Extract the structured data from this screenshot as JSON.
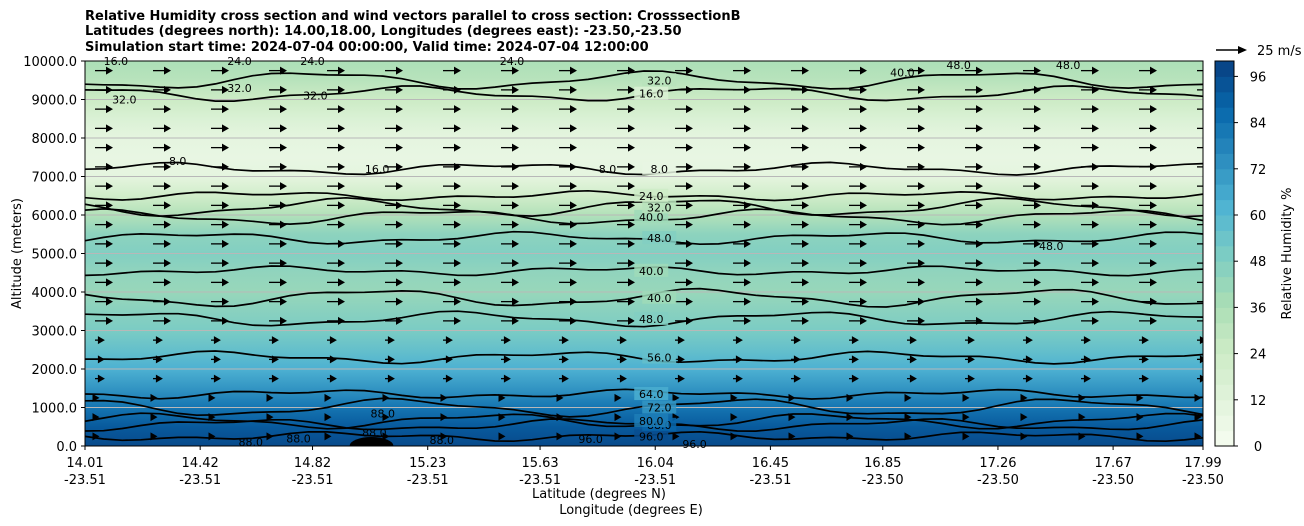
{
  "chart_data": {
    "type": "contour",
    "title": [
      "Relative Humidity cross section and wind vectors parallel to cross section: CrosssectionB",
      "Latitudes (degrees north): 14.00,18.00, Longitudes (degrees east): -23.50,-23.50",
      "Simulation start time: 2024-07-04 00:00:00, Valid time: 2024-07-04 12:00:00"
    ],
    "ylabel": "Altitude (meters)",
    "xlabel": "Latitude (degrees N)",
    "xlabel2": "Longitude (degrees E)",
    "ylim": [
      0,
      10000
    ],
    "y_ticks": [
      "0.0",
      "1000.0",
      "2000.0",
      "3000.0",
      "4000.0",
      "5000.0",
      "6000.0",
      "7000.0",
      "8000.0",
      "9000.0",
      "10000.0"
    ],
    "x_ticks": [
      {
        "lat": "14.01",
        "lon": "-23.51"
      },
      {
        "lat": "14.42",
        "lon": "-23.51"
      },
      {
        "lat": "14.82",
        "lon": "-23.51"
      },
      {
        "lat": "15.23",
        "lon": "-23.51"
      },
      {
        "lat": "15.63",
        "lon": "-23.51"
      },
      {
        "lat": "16.04",
        "lon": "-23.51"
      },
      {
        "lat": "16.45",
        "lon": "-23.51"
      },
      {
        "lat": "16.85",
        "lon": "-23.50"
      },
      {
        "lat": "17.26",
        "lon": "-23.50"
      },
      {
        "lat": "17.67",
        "lon": "-23.50"
      },
      {
        "lat": "17.99",
        "lon": "-23.50"
      }
    ],
    "colorbar": {
      "label": "Relative Humidity %",
      "ticks": [
        "0",
        "12",
        "24",
        "36",
        "48",
        "60",
        "72",
        "84",
        "96"
      ],
      "range": [
        0,
        100
      ],
      "n_levels": 25
    },
    "quiver_key": "25 m/s",
    "rh_profile": [
      {
        "alt": 0,
        "rh": 97
      },
      {
        "alt": 500,
        "rh": 92
      },
      {
        "alt": 1000,
        "rh": 83
      },
      {
        "alt": 1500,
        "rh": 72
      },
      {
        "alt": 2000,
        "rh": 63
      },
      {
        "alt": 2500,
        "rh": 56
      },
      {
        "alt": 3000,
        "rh": 50
      },
      {
        "alt": 3500,
        "rh": 46
      },
      {
        "alt": 4000,
        "rh": 42
      },
      {
        "alt": 4500,
        "rh": 44
      },
      {
        "alt": 5000,
        "rh": 48
      },
      {
        "alt": 5500,
        "rh": 45
      },
      {
        "alt": 6000,
        "rh": 34
      },
      {
        "alt": 6500,
        "rh": 22
      },
      {
        "alt": 7000,
        "rh": 10
      },
      {
        "alt": 7500,
        "rh": 8
      },
      {
        "alt": 8000,
        "rh": 10
      },
      {
        "alt": 8500,
        "rh": 16
      },
      {
        "alt": 9000,
        "rh": 25
      },
      {
        "alt": 9500,
        "rh": 32
      },
      {
        "alt": 10000,
        "rh": 36
      }
    ],
    "contours": [
      {
        "value": 96,
        "label": "96.0",
        "alt": 250
      },
      {
        "value": 88,
        "label": "88.0",
        "alt": 550
      },
      {
        "value": 80,
        "label": "80.0",
        "alt": 650
      },
      {
        "value": 72,
        "label": "72.0",
        "alt": 1000
      },
      {
        "value": 64,
        "label": "64.0",
        "alt": 1350
      },
      {
        "value": 56,
        "label": "56.0",
        "alt": 2300
      },
      {
        "value": 48,
        "label": "48.0",
        "alt": 3300
      },
      {
        "value": 40,
        "label": "40.0",
        "alt": 3850
      },
      {
        "value": 40,
        "label": "40.0",
        "alt": 4550
      },
      {
        "value": 48,
        "label": "48.0",
        "alt": 5400
      },
      {
        "value": 40,
        "label": "40.0",
        "alt": 5950
      },
      {
        "value": 32,
        "label": "32.0",
        "alt": 6200
      },
      {
        "value": 24,
        "label": "24.0",
        "alt": 6500
      },
      {
        "value": 8,
        "label": "8.0",
        "alt": 7200
      },
      {
        "value": 16,
        "label": "16.0",
        "alt": 9150
      },
      {
        "value": 32,
        "label": "32.0",
        "alt": 9500
      }
    ],
    "extra_labels": [
      {
        "text": "8.0",
        "x": 15.87,
        "alt": 7200
      },
      {
        "text": "48.0",
        "x": 17.45,
        "alt": 5200
      },
      {
        "text": "16.0",
        "x": 15.05,
        "alt": 7200
      },
      {
        "text": "8.0",
        "x": 14.34,
        "alt": 7400
      },
      {
        "text": "32.0",
        "x": 14.15,
        "alt": 9000
      },
      {
        "text": "32.0",
        "x": 14.56,
        "alt": 9300
      },
      {
        "text": "32.0",
        "x": 14.83,
        "alt": 9100
      },
      {
        "text": "40.0",
        "x": 16.92,
        "alt": 9700
      },
      {
        "text": "48.0",
        "x": 17.12,
        "alt": 9900
      },
      {
        "text": "48.0",
        "x": 17.51,
        "alt": 9900
      },
      {
        "text": "24.0",
        "x": 14.56,
        "alt": 10000
      },
      {
        "text": "24.0",
        "x": 14.82,
        "alt": 10000
      },
      {
        "text": "24.0",
        "x": 15.53,
        "alt": 10000
      },
      {
        "text": "16.0",
        "x": 14.12,
        "alt": 10000
      },
      {
        "text": "88.0",
        "x": 15.07,
        "alt": 850
      },
      {
        "text": "88.0",
        "x": 15.04,
        "alt": 350
      },
      {
        "text": "88.0",
        "x": 14.77,
        "alt": 200
      },
      {
        "text": "88.0",
        "x": 14.6,
        "alt": 100
      },
      {
        "text": "88.0",
        "x": 15.28,
        "alt": 150
      },
      {
        "text": "96.0",
        "x": 15.81,
        "alt": 180
      },
      {
        "text": "96.0",
        "x": 16.18,
        "alt": 50
      }
    ]
  }
}
